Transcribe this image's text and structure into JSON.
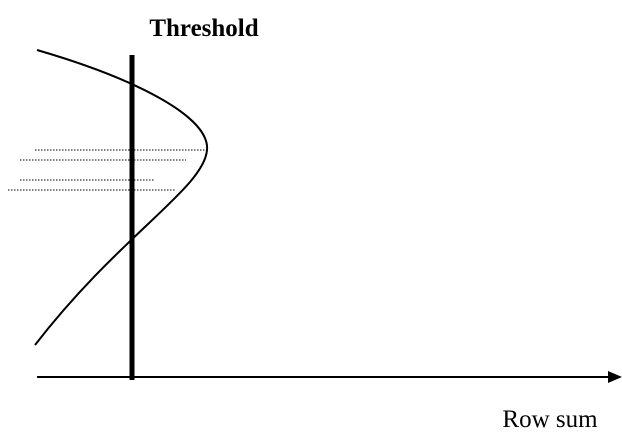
{
  "title": "Threshold",
  "x_axis_label": "Row sum"
}
